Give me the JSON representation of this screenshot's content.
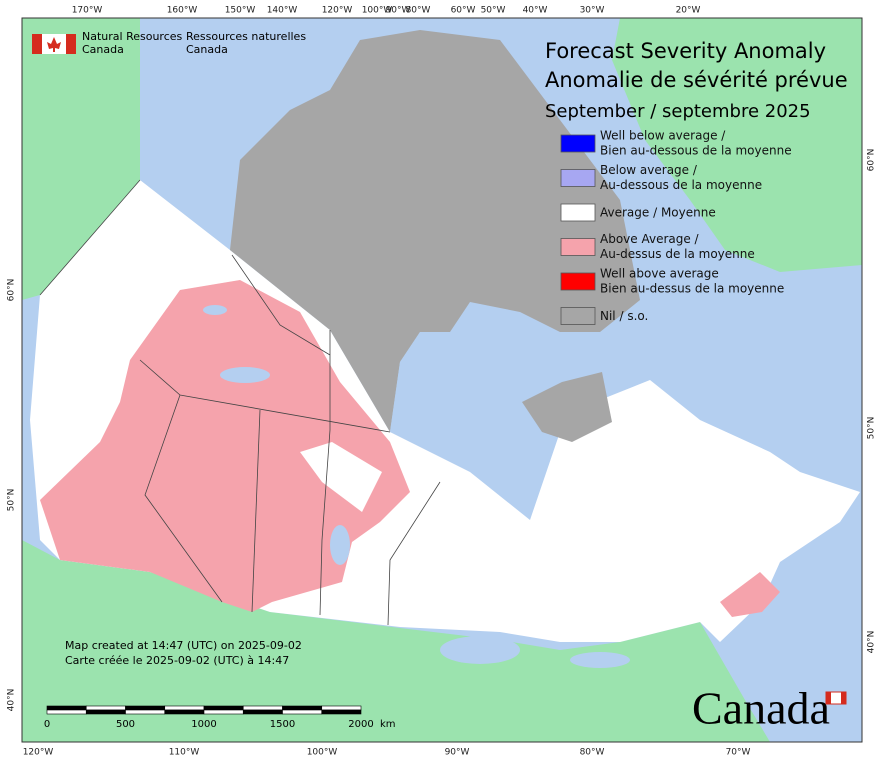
{
  "logo": {
    "en_1": "Natural Resources",
    "en_2": "Canada",
    "fr_1": "Ressources naturelles",
    "fr_2": "Canada"
  },
  "title": {
    "en": "Forecast Severity Anomaly",
    "fr": "Anomalie de sévérité prévue",
    "date": "September / septembre 2025"
  },
  "legend": [
    {
      "label_1": "Well below average /",
      "label_2": "Bien au-dessous de la moyenne",
      "color": "#0000ff"
    },
    {
      "label_1": "Below average /",
      "label_2": "Au-dessous de la moyenne",
      "color": "#a7a7f2"
    },
    {
      "label_1": "Average / Moyenne",
      "color": "#ffffff"
    },
    {
      "label_1": "Above Average /",
      "label_2": "Au-dessus de la moyenne",
      "color": "#f5a3ac"
    },
    {
      "label_1": "Well above average",
      "label_2": "Bien au-dessus de la moyenne",
      "color": "#ff0000"
    },
    {
      "label_1": "Nil / s.o.",
      "color": "#a6a6a6"
    }
  ],
  "graticule": {
    "top": [
      "170°W",
      "160°W",
      "150°W",
      "140°W",
      "120°W",
      "100°W",
      "90°W",
      "80°W",
      "60°W",
      "50°W",
      "40°W",
      "30°W",
      "20°W"
    ],
    "bottom": [
      "120°W",
      "110°W",
      "100°W",
      "90°W",
      "80°W",
      "70°W"
    ],
    "left": [
      "60°N",
      "50°N",
      "40°N"
    ],
    "right": [
      "60°N",
      "50°N",
      "40°N"
    ]
  },
  "footer": {
    "en": "Map created at 14:47 (UTC) on 2025-09-02",
    "fr": "Carte créée le 2025-09-02 (UTC) à 14:47"
  },
  "scale": {
    "labels": [
      "0",
      "500",
      "1000",
      "1500",
      "2000"
    ],
    "unit": "km"
  },
  "wordmark": "Canada"
}
